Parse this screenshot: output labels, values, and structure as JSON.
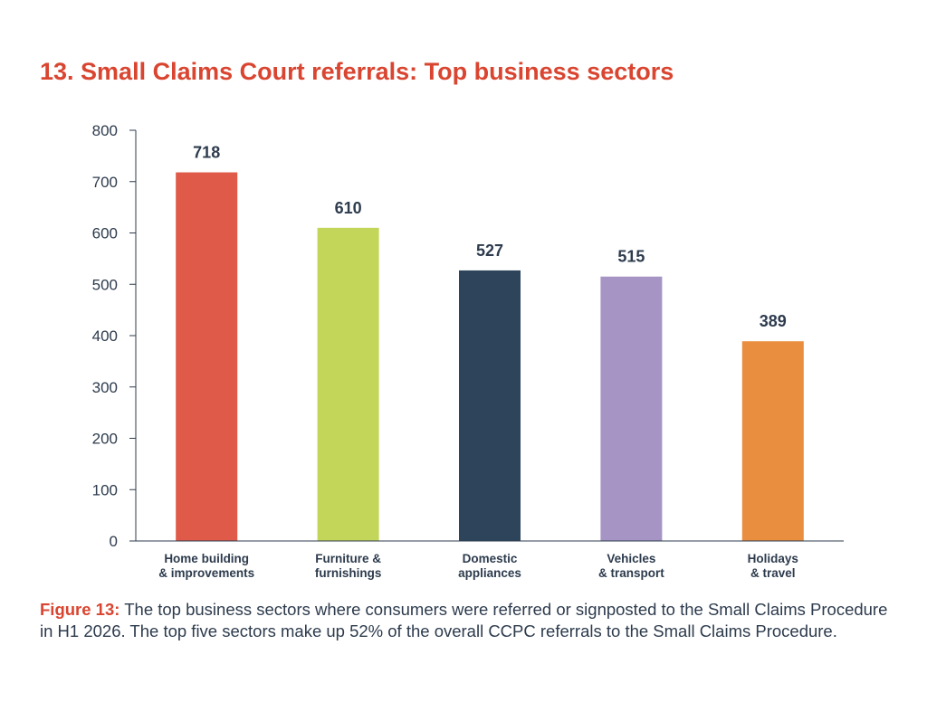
{
  "chart_data": {
    "type": "bar",
    "title": "13. Small Claims Court referrals: Top business sectors",
    "categories": [
      [
        "Home building",
        "& improvements"
      ],
      [
        "Furniture &",
        "furnishings"
      ],
      [
        "Domestic",
        "appliances"
      ],
      [
        "Vehicles",
        "& transport"
      ],
      [
        "Holidays",
        "& travel"
      ]
    ],
    "values": [
      718,
      610,
      527,
      515,
      389
    ],
    "data_labels": [
      "718",
      "610",
      "527",
      "515",
      "389"
    ],
    "colors": [
      "#df5a48",
      "#c4d65a",
      "#2e445a",
      "#a694c4",
      "#e98d3e"
    ],
    "ylim": [
      0,
      800
    ],
    "yticks": [
      0,
      100,
      200,
      300,
      400,
      500,
      600,
      700,
      800
    ],
    "xlabel": "",
    "ylabel": "",
    "grid": false,
    "legend": "none"
  },
  "caption": {
    "label": "Figure 13:",
    "text": " The top business sectors where consumers were referred or signposted to the Small Claims Procedure in H1 2026. The top five sectors make up 52% of the overall CCPC referrals to the Small Claims Procedure."
  }
}
